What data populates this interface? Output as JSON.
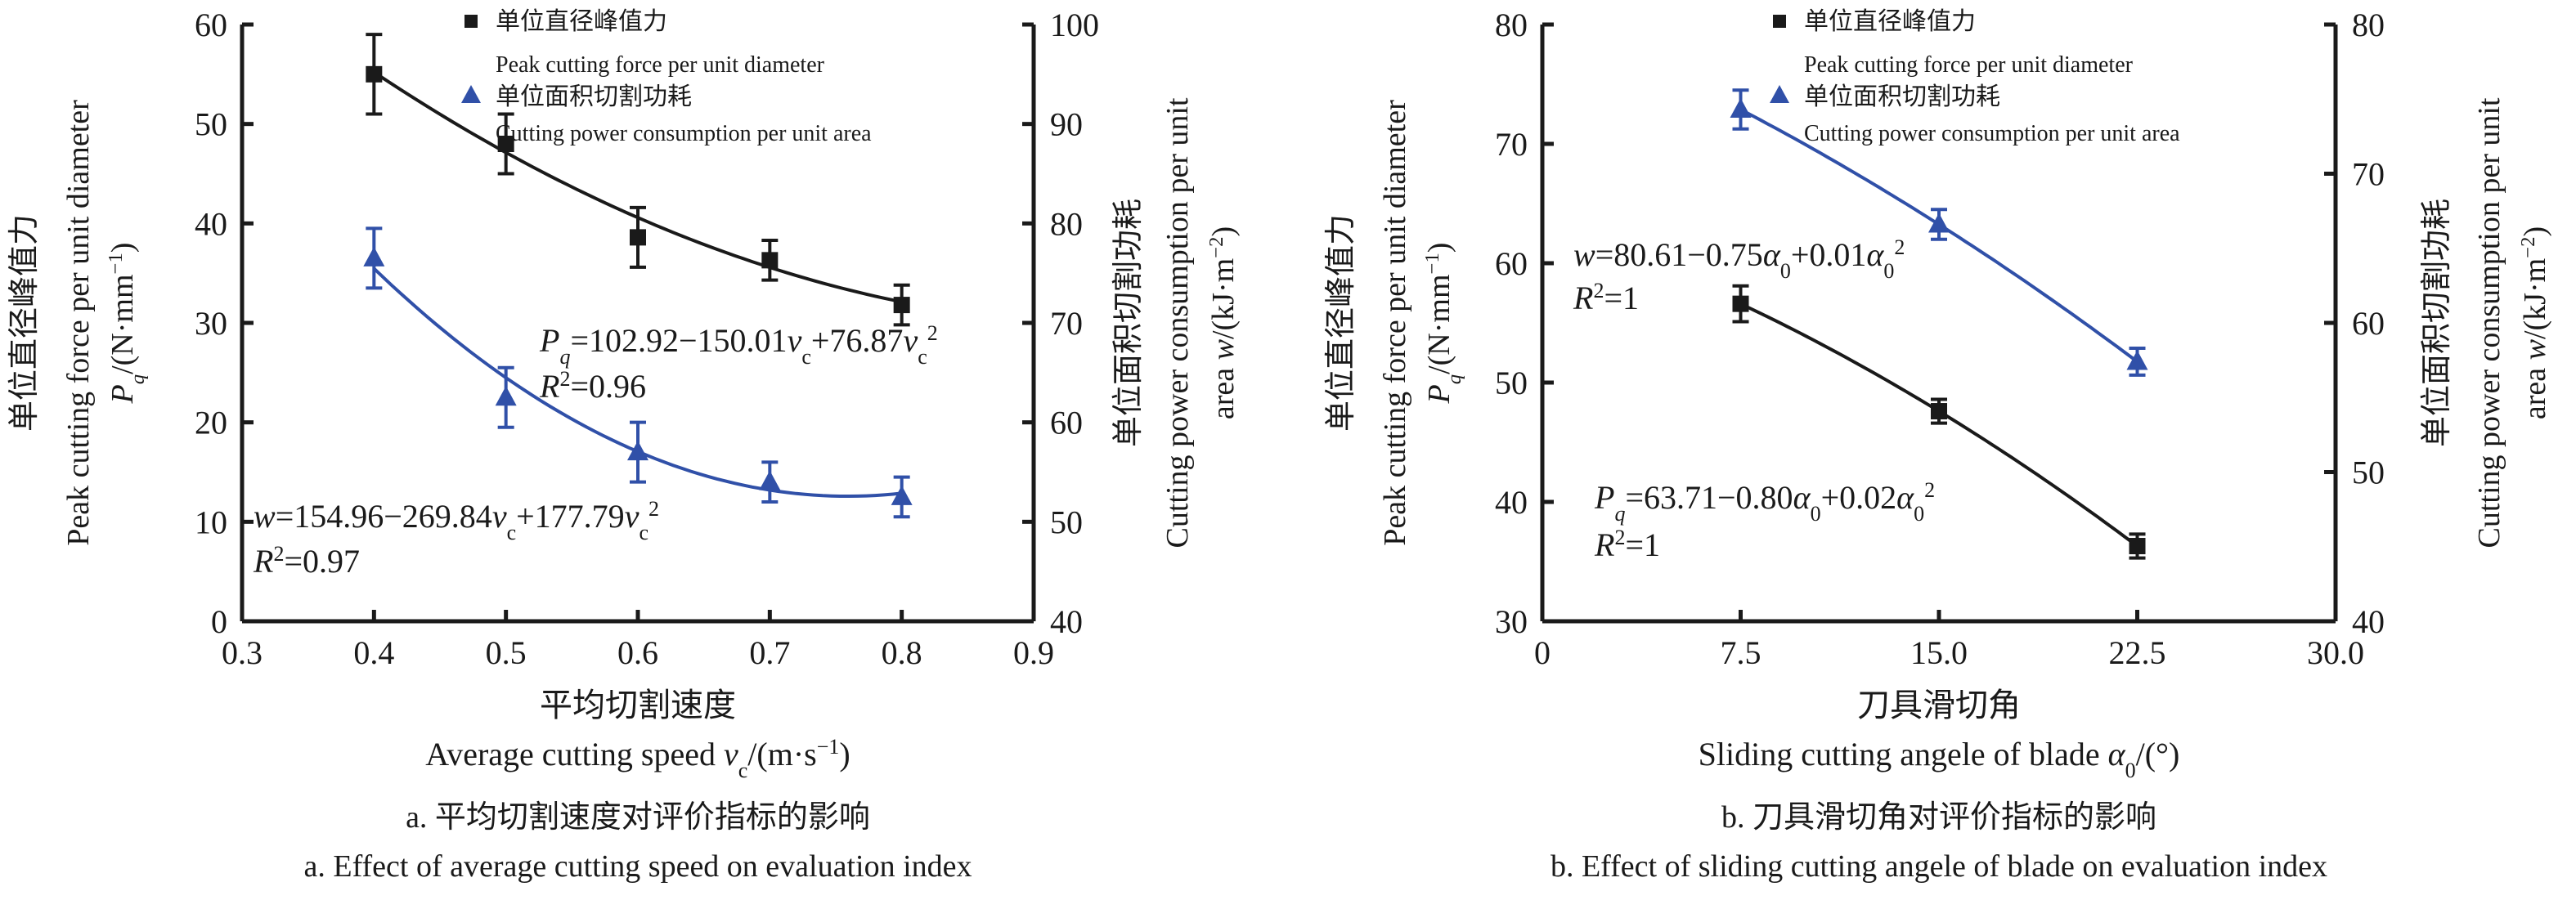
{
  "colors": {
    "black": "#1a1a1a",
    "blue": "#3050a8"
  },
  "chart_data": [
    {
      "type": "line",
      "id": "a",
      "caption_cn": "a. 平均切割速度对评价指标的影响",
      "caption_en": "a. Effect of average cutting speed on evaluation index",
      "xlabel_cn": "平均切割速度",
      "xlabel_en": [
        [
          "Average cutting speed ",
          ""
        ],
        [
          "v",
          "i"
        ],
        [
          "c",
          "sub"
        ],
        [
          "/(m·s",
          ""
        ],
        [
          "−1",
          "sup"
        ],
        [
          ")",
          ""
        ]
      ],
      "ylabel_left": {
        "cn": "单位直径峰值力",
        "en": "Peak cutting force per unit diameter",
        "unit": [
          [
            "P",
            "i"
          ],
          [
            "q",
            "isub"
          ],
          [
            "/(N·mm",
            ""
          ],
          [
            "−1",
            "sup"
          ],
          [
            ")",
            ""
          ]
        ]
      },
      "ylabel_right": {
        "cn": "单位面积切割功耗",
        "en": "Cutting power consumption per unit",
        "unit": [
          [
            "area ",
            ""
          ],
          [
            "w",
            "i"
          ],
          [
            "/(kJ·m",
            ""
          ],
          [
            "−2",
            "sup"
          ],
          [
            ")",
            ""
          ]
        ]
      },
      "xlim": [
        0.3,
        0.9
      ],
      "xticks": [
        "0.3",
        "0.4",
        "0.5",
        "0.6",
        "0.7",
        "0.8",
        "0.9"
      ],
      "ylim_left": [
        0,
        60
      ],
      "yticks_left": [
        "0",
        "10",
        "20",
        "30",
        "40",
        "50",
        "60"
      ],
      "ylim_right": [
        40,
        100
      ],
      "yticks_right": [
        "40",
        "50",
        "60",
        "70",
        "80",
        "90",
        "100"
      ],
      "legend": [
        {
          "cn": "单位直径峰值力",
          "en": "Peak cutting force per unit diameter",
          "marker": "square"
        },
        {
          "cn": "单位面积切割功耗",
          "en": "Cutting power consumption per unit area",
          "marker": "triangle"
        }
      ],
      "series": [
        {
          "name": "Peak cutting force per unit diameter",
          "axis": "left",
          "marker": "square",
          "x": [
            0.4,
            0.5,
            0.6,
            0.7,
            0.8
          ],
          "y": [
            55.0,
            48.0,
            38.6,
            36.3,
            31.8
          ],
          "err": [
            4.0,
            3.0,
            3.0,
            2.0,
            2.0
          ],
          "fit": [
            102.92,
            -150.01,
            76.87
          ]
        },
        {
          "name": "Cutting power consumption per unit area",
          "axis": "right",
          "marker": "triangle",
          "x": [
            0.4,
            0.5,
            0.6,
            0.7,
            0.8
          ],
          "y": [
            76.5,
            62.5,
            57.0,
            54.0,
            52.5
          ],
          "err": [
            3.0,
            3.0,
            3.0,
            2.0,
            2.0
          ],
          "fit": [
            154.96,
            -269.84,
            177.79
          ]
        }
      ],
      "annotations": [
        {
          "eq": [
            [
              "P",
              "i"
            ],
            [
              "q",
              "isub"
            ],
            [
              "=102.92−150.01",
              ""
            ],
            [
              "v",
              "i"
            ],
            [
              "c",
              "sub"
            ],
            [
              "+76.87",
              ""
            ],
            [
              "v",
              "i"
            ],
            [
              "c",
              "sub"
            ],
            [
              "2",
              "sup"
            ]
          ],
          "r2": [
            [
              "R",
              "i"
            ],
            [
              "2",
              "sup"
            ],
            [
              "=0.96",
              ""
            ]
          ]
        },
        {
          "eq": [
            [
              "w",
              "i"
            ],
            [
              "=154.96−269.84",
              ""
            ],
            [
              "v",
              "i"
            ],
            [
              "c",
              "sub"
            ],
            [
              "+177.79",
              ""
            ],
            [
              "v",
              "i"
            ],
            [
              "c",
              "sub"
            ],
            [
              "2",
              "sup"
            ]
          ],
          "r2": [
            [
              "R",
              "i"
            ],
            [
              "2",
              "sup"
            ],
            [
              "=0.97",
              ""
            ]
          ]
        }
      ]
    },
    {
      "type": "line",
      "id": "b",
      "caption_cn": "b. 刀具滑切角对评价指标的影响",
      "caption_en": "b. Effect of sliding cutting angele of blade on evaluation index",
      "xlabel_cn": "刀具滑切角",
      "xlabel_en": [
        [
          "Sliding cutting angele of blade ",
          ""
        ],
        [
          "α",
          "i"
        ],
        [
          "0",
          "sub"
        ],
        [
          "/(°)",
          ""
        ]
      ],
      "ylabel_left": {
        "cn": "单位直径峰值力",
        "en": "Peak cutting force per unit diameter",
        "unit": [
          [
            "P",
            "i"
          ],
          [
            "q",
            "isub"
          ],
          [
            "/(N·mm",
            ""
          ],
          [
            "−1",
            "sup"
          ],
          [
            ")",
            ""
          ]
        ]
      },
      "ylabel_right": {
        "cn": "单位面积切割功耗",
        "en": "Cutting power consumption per unit",
        "unit": [
          [
            "area ",
            ""
          ],
          [
            "w",
            "i"
          ],
          [
            "/(kJ·m",
            ""
          ],
          [
            "−2",
            "sup"
          ],
          [
            ")",
            ""
          ]
        ]
      },
      "xlim": [
        0,
        30
      ],
      "xticks": [
        "0",
        "7.5",
        "15.0",
        "22.5",
        "30.0"
      ],
      "ylim_left": [
        30,
        80
      ],
      "yticks_left": [
        "30",
        "40",
        "50",
        "60",
        "70",
        "80"
      ],
      "ylim_right": [
        40,
        80
      ],
      "yticks_right": [
        "40",
        "50",
        "60",
        "70",
        "80"
      ],
      "legend": [
        {
          "cn": "单位直径峰值力",
          "en": "Peak cutting force per unit diameter",
          "marker": "square"
        },
        {
          "cn": "单位面积切割功耗",
          "en": "Cutting power consumption per unit area",
          "marker": "triangle"
        }
      ],
      "series": [
        {
          "name": "Peak cutting force per unit diameter",
          "axis": "left",
          "marker": "square",
          "x": [
            7.5,
            15.0,
            22.5
          ],
          "y": [
            56.6,
            47.6,
            36.3
          ],
          "err": [
            1.5,
            1.0,
            1.0
          ]
        },
        {
          "name": "Cutting power consumption per unit area",
          "axis": "right",
          "marker": "triangle",
          "x": [
            7.5,
            15.0,
            22.5
          ],
          "y": [
            74.3,
            66.6,
            57.4
          ],
          "err": [
            1.3,
            1.0,
            0.9
          ]
        }
      ],
      "annotations": [
        {
          "eq": [
            [
              "w",
              "i"
            ],
            [
              "=80.61−0.75",
              ""
            ],
            [
              "α",
              "i"
            ],
            [
              "0",
              "sub"
            ],
            [
              "+0.01",
              ""
            ],
            [
              "α",
              "i"
            ],
            [
              "0",
              "sub"
            ],
            [
              "2",
              "sup"
            ]
          ],
          "r2": [
            [
              "R",
              "i"
            ],
            [
              "2",
              "sup"
            ],
            [
              "=1",
              ""
            ]
          ]
        },
        {
          "eq": [
            [
              "P",
              "i"
            ],
            [
              "q",
              "isub"
            ],
            [
              "=63.71−0.80",
              ""
            ],
            [
              "α",
              "i"
            ],
            [
              "0",
              "sub"
            ],
            [
              "+0.02",
              ""
            ],
            [
              "α",
              "i"
            ],
            [
              "0",
              "sub"
            ],
            [
              "2",
              "sup"
            ]
          ],
          "r2": [
            [
              "R",
              "i"
            ],
            [
              "2",
              "sup"
            ],
            [
              "=1",
              ""
            ]
          ]
        }
      ]
    }
  ]
}
